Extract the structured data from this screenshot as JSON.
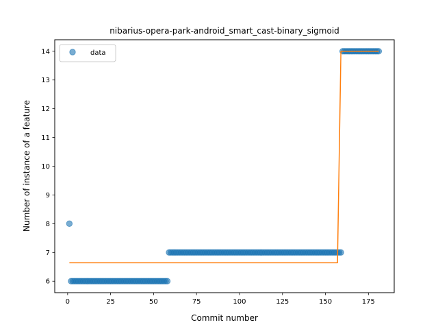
{
  "chart_data": {
    "type": "scatter",
    "title": "nibarius-opera-park-android_smart_cast-binary_sigmoid",
    "xlabel": "Commit number",
    "ylabel": "Number of instance of a feature",
    "xlim": [
      -7.5,
      190
    ],
    "ylim": [
      5.6,
      14.4
    ],
    "xticks": [
      0,
      25,
      50,
      75,
      100,
      125,
      150,
      175
    ],
    "yticks": [
      6,
      7,
      8,
      9,
      10,
      11,
      12,
      13,
      14
    ],
    "grid": false,
    "legend": {
      "position": "top-left",
      "entries": [
        "data"
      ]
    },
    "colors": {
      "data": "#1f77b4",
      "fit": "#ff7f0e"
    },
    "series": [
      {
        "name": "data",
        "kind": "points",
        "segments": [
          {
            "x_from": 1,
            "x_to": 1,
            "y": 8
          },
          {
            "x_from": 2,
            "x_to": 58,
            "y": 6
          },
          {
            "x_from": 59,
            "x_to": 159,
            "y": 7
          },
          {
            "x_from": 160,
            "x_to": 181,
            "y": 14
          }
        ]
      },
      {
        "kind": "line",
        "points": [
          [
            1,
            6.64
          ],
          [
            157,
            6.64
          ],
          [
            159,
            14.0
          ],
          [
            181,
            14.0
          ]
        ]
      }
    ]
  }
}
